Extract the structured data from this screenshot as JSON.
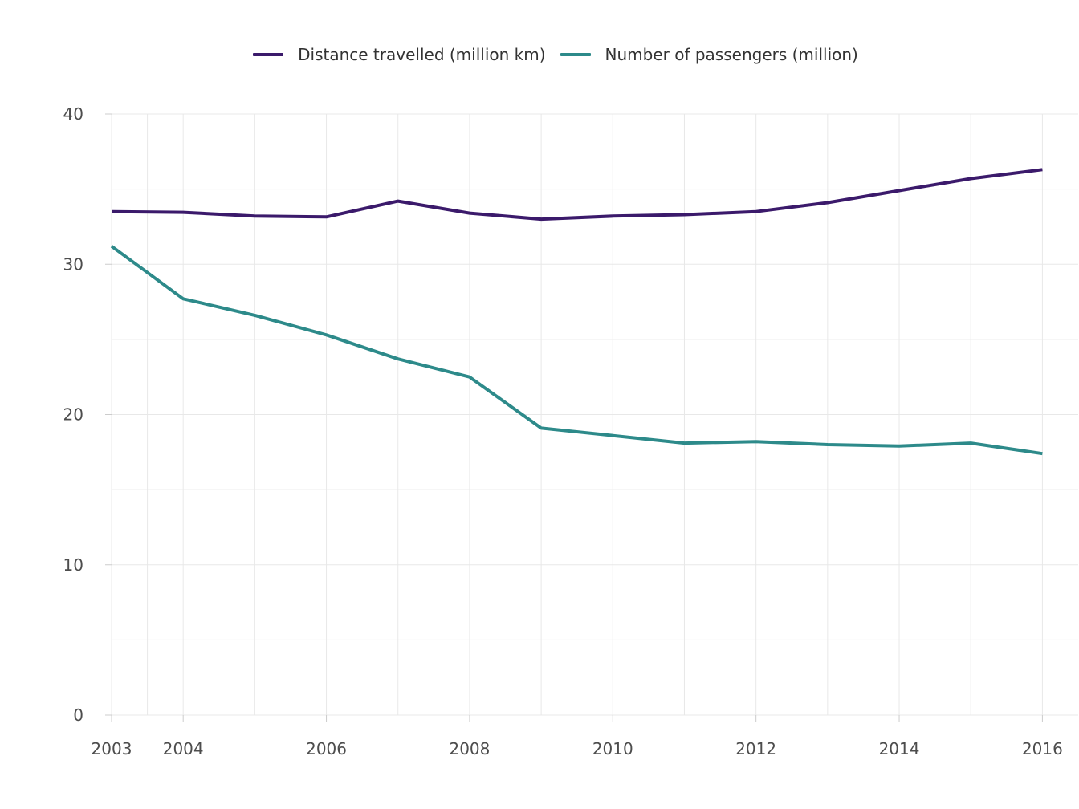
{
  "chart_data": {
    "type": "line",
    "title": "",
    "xlabel": "",
    "ylabel": "",
    "x": [
      2003,
      2004,
      2005,
      2006,
      2007,
      2008,
      2009,
      2010,
      2011,
      2012,
      2013,
      2014,
      2015,
      2016
    ],
    "x_tick_labels": [
      "2003",
      "2004",
      "2006",
      "2008",
      "2010",
      "2012",
      "2014",
      "2016"
    ],
    "x_tick_values": [
      2003,
      2004,
      2006,
      2008,
      2010,
      2012,
      2014,
      2016
    ],
    "xlim": [
      2003,
      2016.5
    ],
    "y_tick_labels": [
      "0",
      "10",
      "20",
      "30",
      "40"
    ],
    "y_tick_values": [
      0,
      10,
      20,
      30,
      40
    ],
    "ylim": [
      0,
      40
    ],
    "grid": true,
    "legend_position": "top-center",
    "series": [
      {
        "name": "Distance travelled (million km)",
        "color": "#3b1a6b",
        "values": [
          33.5,
          33.45,
          33.2,
          33.15,
          34.2,
          33.4,
          33.0,
          33.2,
          33.3,
          33.5,
          34.1,
          34.9,
          35.7,
          36.3
        ]
      },
      {
        "name": "Number of passengers (million)",
        "color": "#2d8a8a",
        "values": [
          31.2,
          27.7,
          26.6,
          25.3,
          23.7,
          22.5,
          19.1,
          18.6,
          18.1,
          18.2,
          18.0,
          17.9,
          18.1,
          17.4
        ]
      }
    ]
  }
}
